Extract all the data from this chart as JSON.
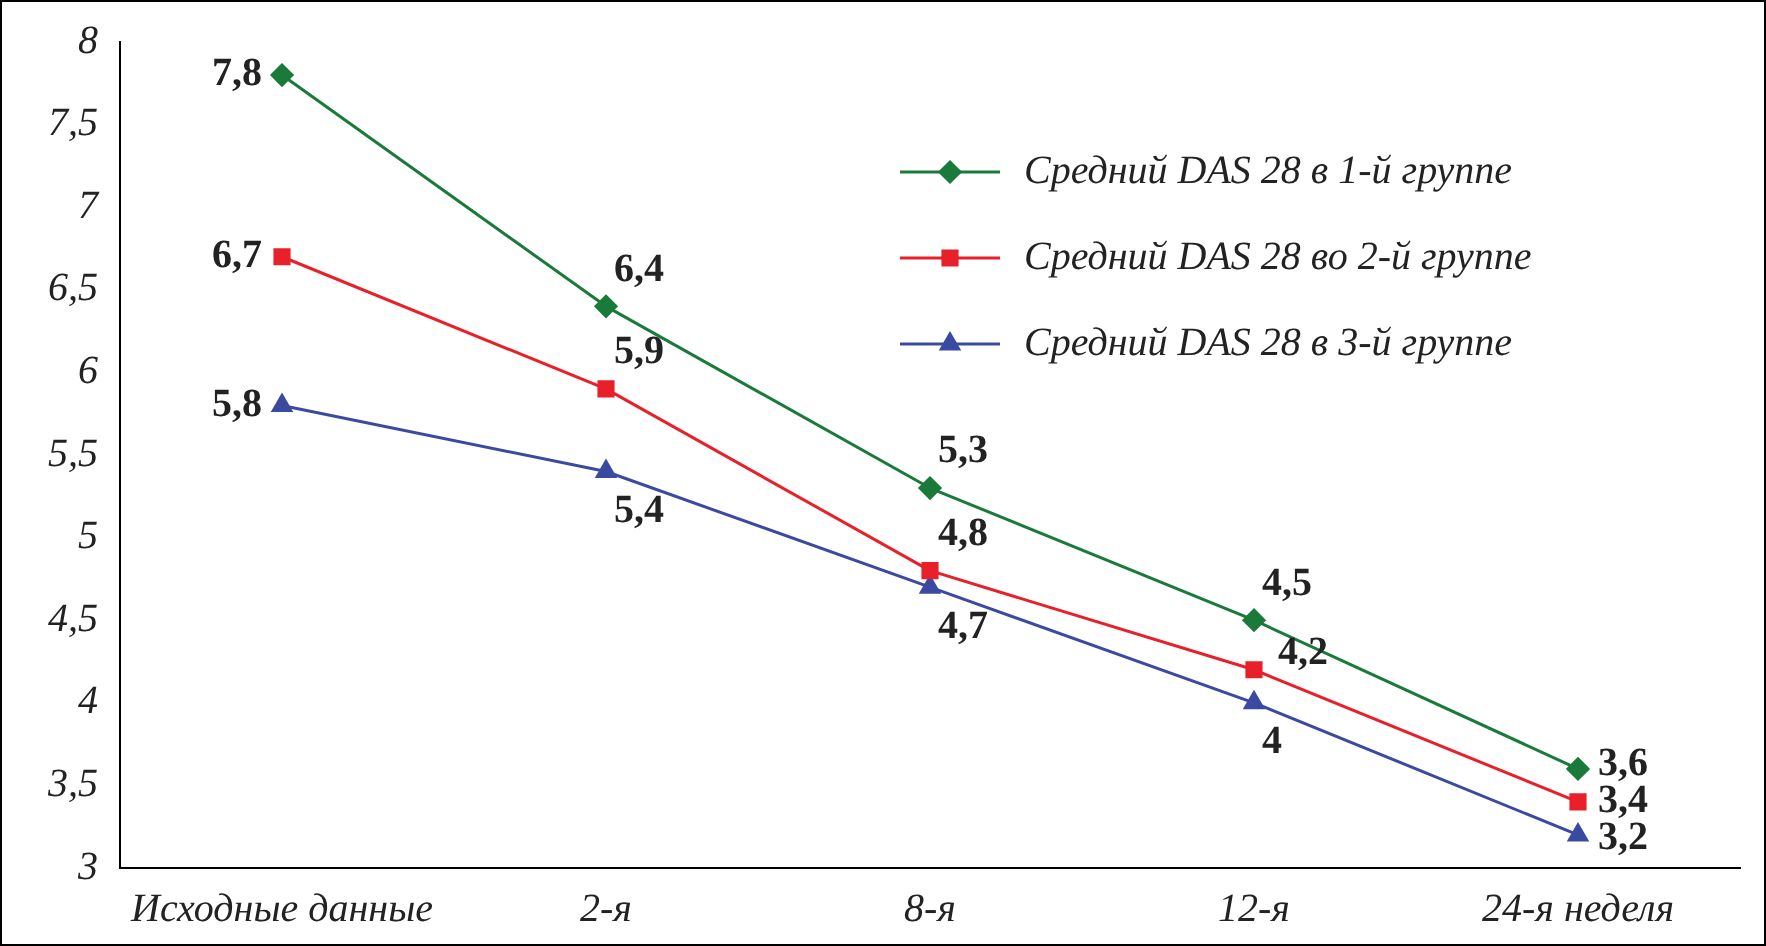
{
  "chart_data": {
    "type": "line",
    "categories": [
      "Исходные данные",
      "2-я",
      "8-я",
      "12-я",
      "24-я неделя"
    ],
    "series": [
      {
        "name": "Средний DAS 28 в 1-й группе",
        "color": "#1a7a3a",
        "marker": "diamond",
        "values": [
          7.8,
          6.4,
          5.3,
          4.5,
          3.6
        ],
        "value_labels": [
          "7,8",
          "6,4",
          "5,3",
          "4,5",
          "3,6"
        ]
      },
      {
        "name": "Средний DAS 28 во 2-й группе",
        "color": "#e8202a",
        "marker": "square",
        "values": [
          6.7,
          5.9,
          4.8,
          4.2,
          3.4
        ],
        "value_labels": [
          "6,7",
          "5,9",
          "4,8",
          "4,2",
          "3,4"
        ]
      },
      {
        "name": "Средний DAS 28 в 3-й группе",
        "color": "#3a4aa0",
        "marker": "triangle",
        "values": [
          5.8,
          5.4,
          4.7,
          4.0,
          3.2
        ],
        "value_labels": [
          "5,8",
          "5,4",
          "4,7",
          "4",
          "3,2"
        ]
      }
    ],
    "ylim": [
      3,
      8
    ],
    "yticks": [
      {
        "value": 3,
        "label": "3"
      },
      {
        "value": 3.5,
        "label": "3,5"
      },
      {
        "value": 4,
        "label": "4"
      },
      {
        "value": 4.5,
        "label": "4,5"
      },
      {
        "value": 5,
        "label": "5"
      },
      {
        "value": 5.5,
        "label": "5,5"
      },
      {
        "value": 6,
        "label": "6"
      },
      {
        "value": 6.5,
        "label": "6,5"
      },
      {
        "value": 7,
        "label": "7"
      },
      {
        "value": 7.5,
        "label": "7,5"
      },
      {
        "value": 8,
        "label": "8"
      }
    ],
    "grid": false,
    "legend": "top right",
    "line_style": "solid"
  }
}
